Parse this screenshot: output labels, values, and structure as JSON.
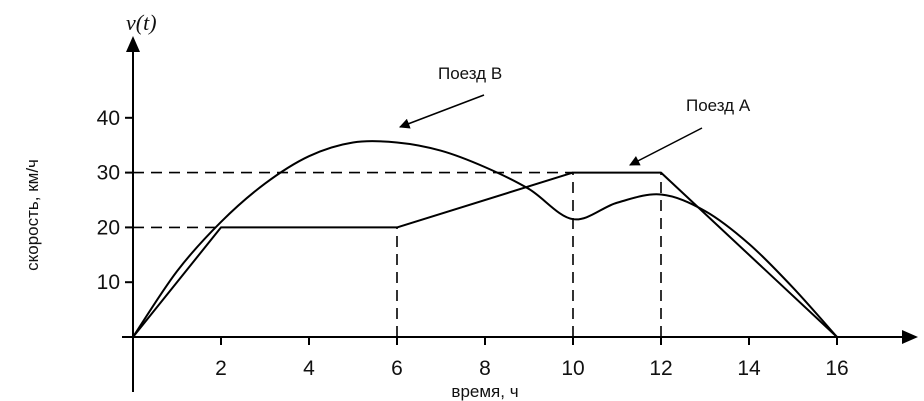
{
  "chart_data": {
    "type": "line",
    "title": "",
    "y_axis_symbol": "v(t)",
    "xlabel": "время, ч",
    "ylabel": "скорость, км/ч",
    "xlim": [
      0,
      18
    ],
    "ylim": [
      0,
      45
    ],
    "x_ticks": [
      2,
      4,
      6,
      8,
      10,
      12,
      14,
      16
    ],
    "x_tick_labels": [
      "2",
      "4",
      "6",
      "8",
      "10",
      "12",
      "14",
      "16"
    ],
    "y_ticks": [
      10,
      20,
      30,
      40
    ],
    "y_tick_labels": [
      "10",
      "20",
      "30",
      "40"
    ],
    "grid": false,
    "series": [
      {
        "name": "Поезд А",
        "x": [
          0,
          2,
          6,
          10,
          12,
          16
        ],
        "y": [
          0,
          20,
          20,
          30,
          30,
          0
        ]
      },
      {
        "name": "Поезд В",
        "x": [
          0,
          1,
          2,
          3,
          4,
          5,
          6,
          7,
          8,
          9,
          10,
          11,
          12,
          13,
          14,
          15,
          16
        ],
        "y": [
          0,
          12,
          21,
          28,
          33,
          35.5,
          35.5,
          34,
          31,
          27,
          21.5,
          24.5,
          26,
          23,
          17,
          9,
          0
        ]
      }
    ],
    "reference_lines": [
      {
        "kind": "horizontal",
        "y": 30,
        "x_from": 0,
        "x_to": 10
      },
      {
        "kind": "horizontal",
        "y": 20,
        "x_from": 0,
        "x_to": 2
      },
      {
        "kind": "vertical",
        "x": 6,
        "y_from": 0,
        "y_to": 20
      },
      {
        "kind": "vertical",
        "x": 10,
        "y_from": 0,
        "y_to": 30
      },
      {
        "kind": "vertical",
        "x": 12,
        "y_from": 0,
        "y_to": 30
      }
    ],
    "annotations": [
      {
        "text": "Поезд В",
        "target_series": "Поезд В"
      },
      {
        "text": "Поезд А",
        "target_series": "Поезд А"
      }
    ],
    "colors": {
      "line": "#000000",
      "dashed": "#000000",
      "text": "#111111"
    }
  }
}
